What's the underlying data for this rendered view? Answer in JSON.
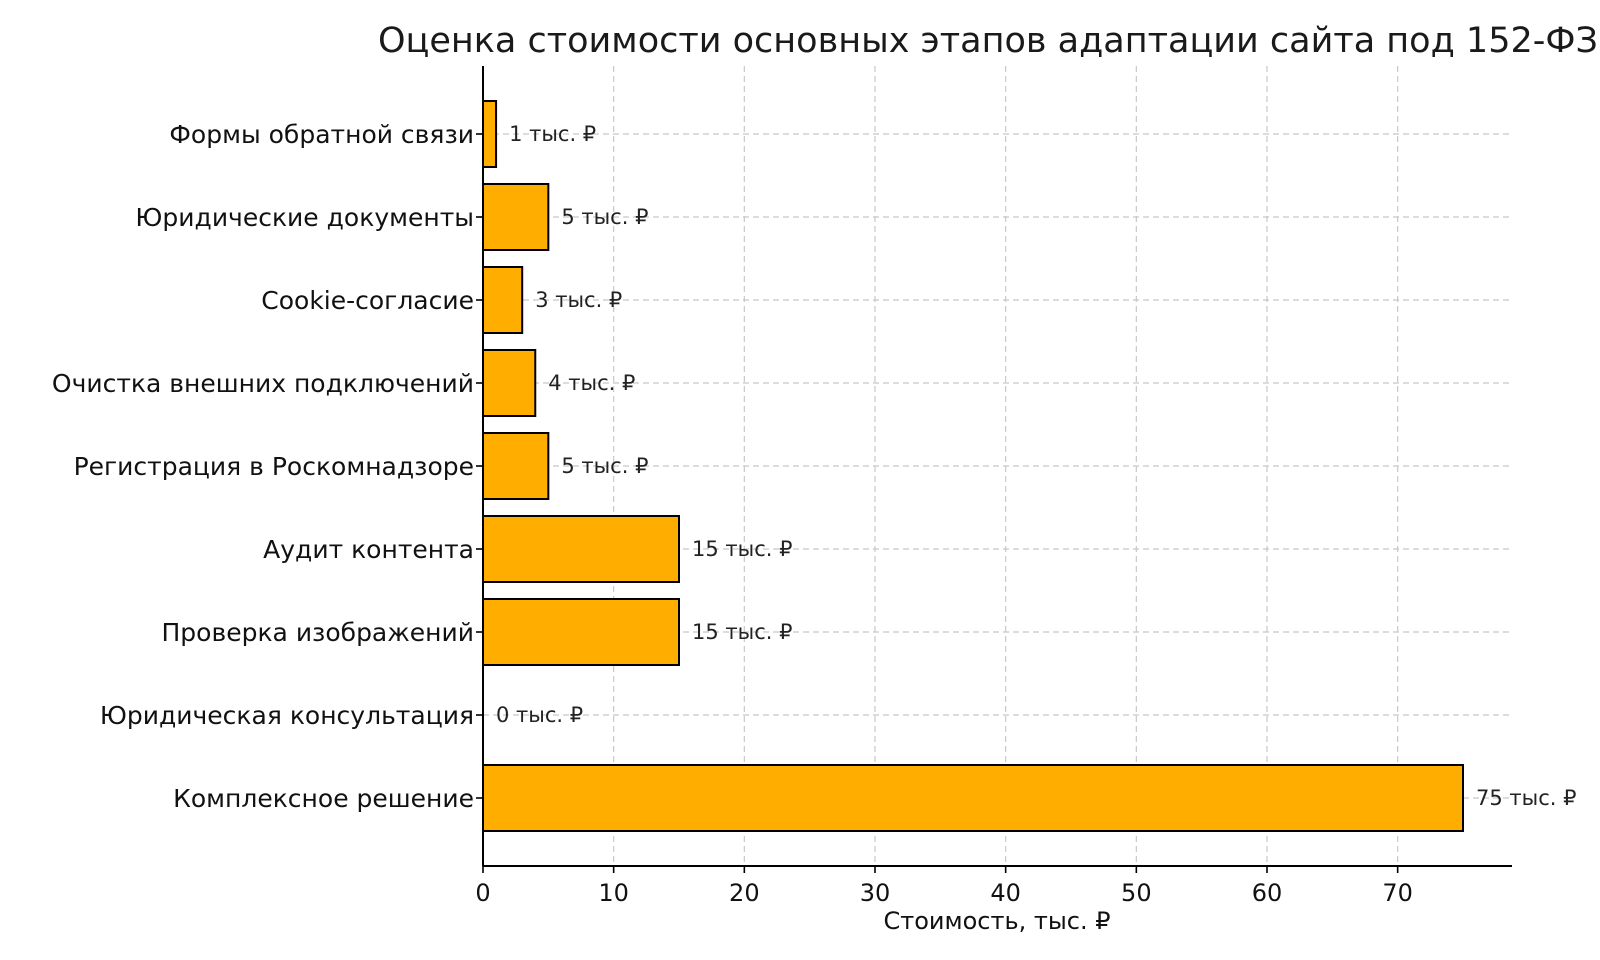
{
  "chart_data": {
    "type": "bar",
    "orientation": "horizontal",
    "title": "Оценка стоимости основных этапов адаптации сайта под 152-ФЗ",
    "xlabel": "Стоимость, тыс. ₽",
    "ylabel": "",
    "categories": [
      "Формы обратной связи",
      "Юридические документы",
      "Cookie-согласие",
      "Очистка внешних подключений",
      "Регистрация в Роскомнадзоре",
      "Аудит контента",
      "Проверка изображений",
      "Юридическая консультация",
      "Комплексное решение"
    ],
    "values": [
      1,
      5,
      3,
      4,
      5,
      15,
      15,
      0,
      75
    ],
    "data_labels": [
      "1 тыс. ₽",
      "5 тыс. ₽",
      "3 тыс. ₽",
      "4 тыс. ₽",
      "5 тыс. ₽",
      "15 тыс. ₽",
      "15 тыс. ₽",
      "0 тыс. ₽",
      "75 тыс. ₽"
    ],
    "xticks": [
      0,
      10,
      20,
      30,
      40,
      50,
      60,
      70
    ],
    "xtick_labels": [
      "0",
      "10",
      "20",
      "30",
      "40",
      "50",
      "60",
      "70"
    ],
    "xlim": [
      0,
      78.75
    ],
    "grid": true,
    "bar_color": "#FFAE00",
    "edge_color": "#000000"
  }
}
